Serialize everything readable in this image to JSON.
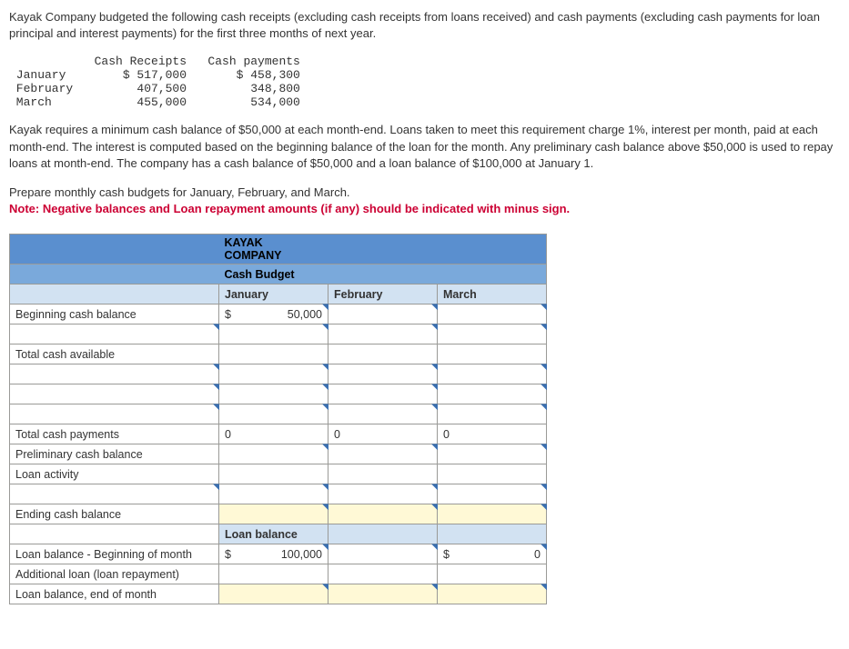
{
  "intro": "Kayak Company budgeted the following cash receipts (excluding cash receipts from loans received) and cash payments (excluding cash payments for loan principal and interest payments) for the first three months of next year.",
  "dataTable": {
    "header": {
      "c1": "",
      "c2": "Cash Receipts",
      "c3": "Cash payments"
    },
    "rows": [
      {
        "m": "January",
        "r": "$ 517,000",
        "p": "$ 458,300"
      },
      {
        "m": "February",
        "r": "407,500",
        "p": "348,800"
      },
      {
        "m": "March",
        "r": "455,000",
        "p": "534,000"
      }
    ]
  },
  "para2": "Kayak requires a minimum cash balance of $50,000 at each month-end. Loans taken to meet this requirement charge 1%, interest per month, paid at each month-end. The interest is computed based on the beginning balance of the loan for the month. Any preliminary cash balance above $50,000 is used to repay loans at month-end. The company has a cash balance of $50,000 and a loan balance of $100,000 at January 1.",
  "prep": "Prepare monthly cash budgets for January, February, and March.",
  "note": "Note: Negative balances and Loan repayment amounts (if any) should be indicated with minus sign.",
  "budget": {
    "title1": "KAYAK COMPANY",
    "title2": "Cash Budget",
    "months": {
      "jan": "January",
      "feb": "February",
      "mar": "March"
    },
    "rows": {
      "begCash": "Beginning cash balance",
      "totAvail": "Total cash available",
      "totPay": "Total cash payments",
      "prelim": "Preliminary cash balance",
      "loanAct": "Loan activity",
      "endCash": "Ending cash balance",
      "loanHdr": "Loan balance",
      "loanBeg": "Loan balance - Beginning of month",
      "addLoan": "Additional loan (loan repayment)",
      "loanEnd": "Loan balance, end of month"
    },
    "values": {
      "begCashJan": "50,000",
      "totPayJan": "0",
      "totPayFeb": "0",
      "totPayMar": "0",
      "loanBegJan": "100,000",
      "loanBegMarCur": "$",
      "loanBegMar": "0"
    }
  }
}
